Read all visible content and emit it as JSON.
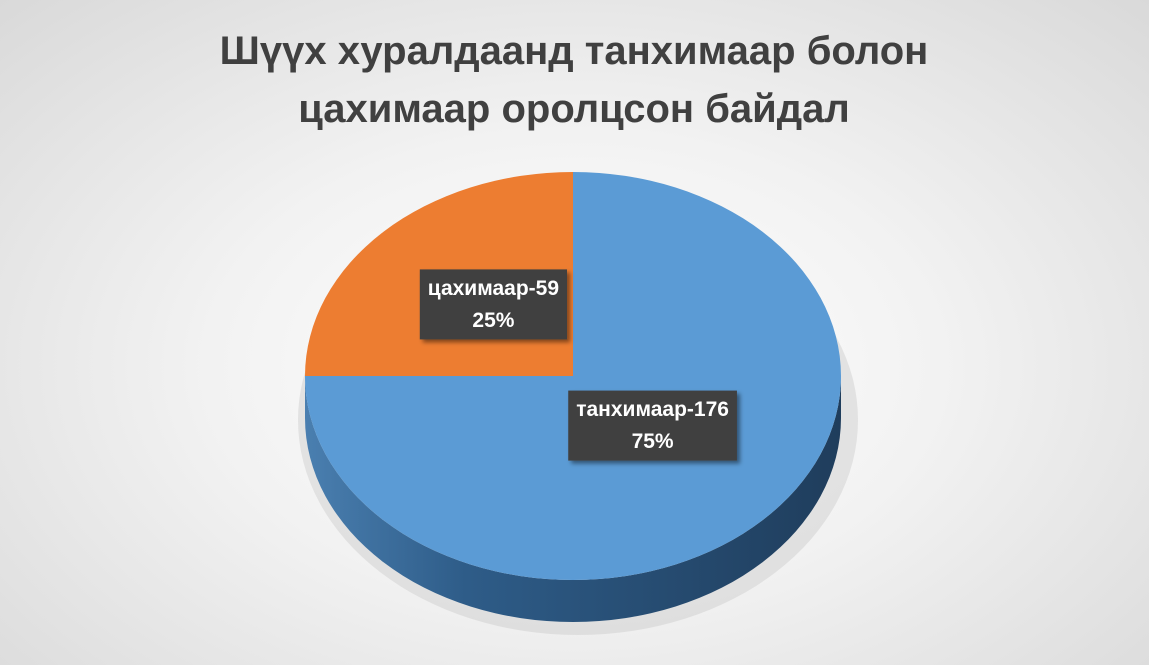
{
  "chart_data": {
    "type": "pie",
    "title": "Шүүх хуралдаанд танхимаар болон цахимаар оролцсон байдал",
    "categories": [
      "танхимаар-176",
      "цахимаар-59"
    ],
    "values": [
      75,
      25
    ],
    "value_labels": [
      "75%",
      "25%"
    ],
    "colors": [
      "#5b9bd5",
      "#ed7d31"
    ]
  }
}
